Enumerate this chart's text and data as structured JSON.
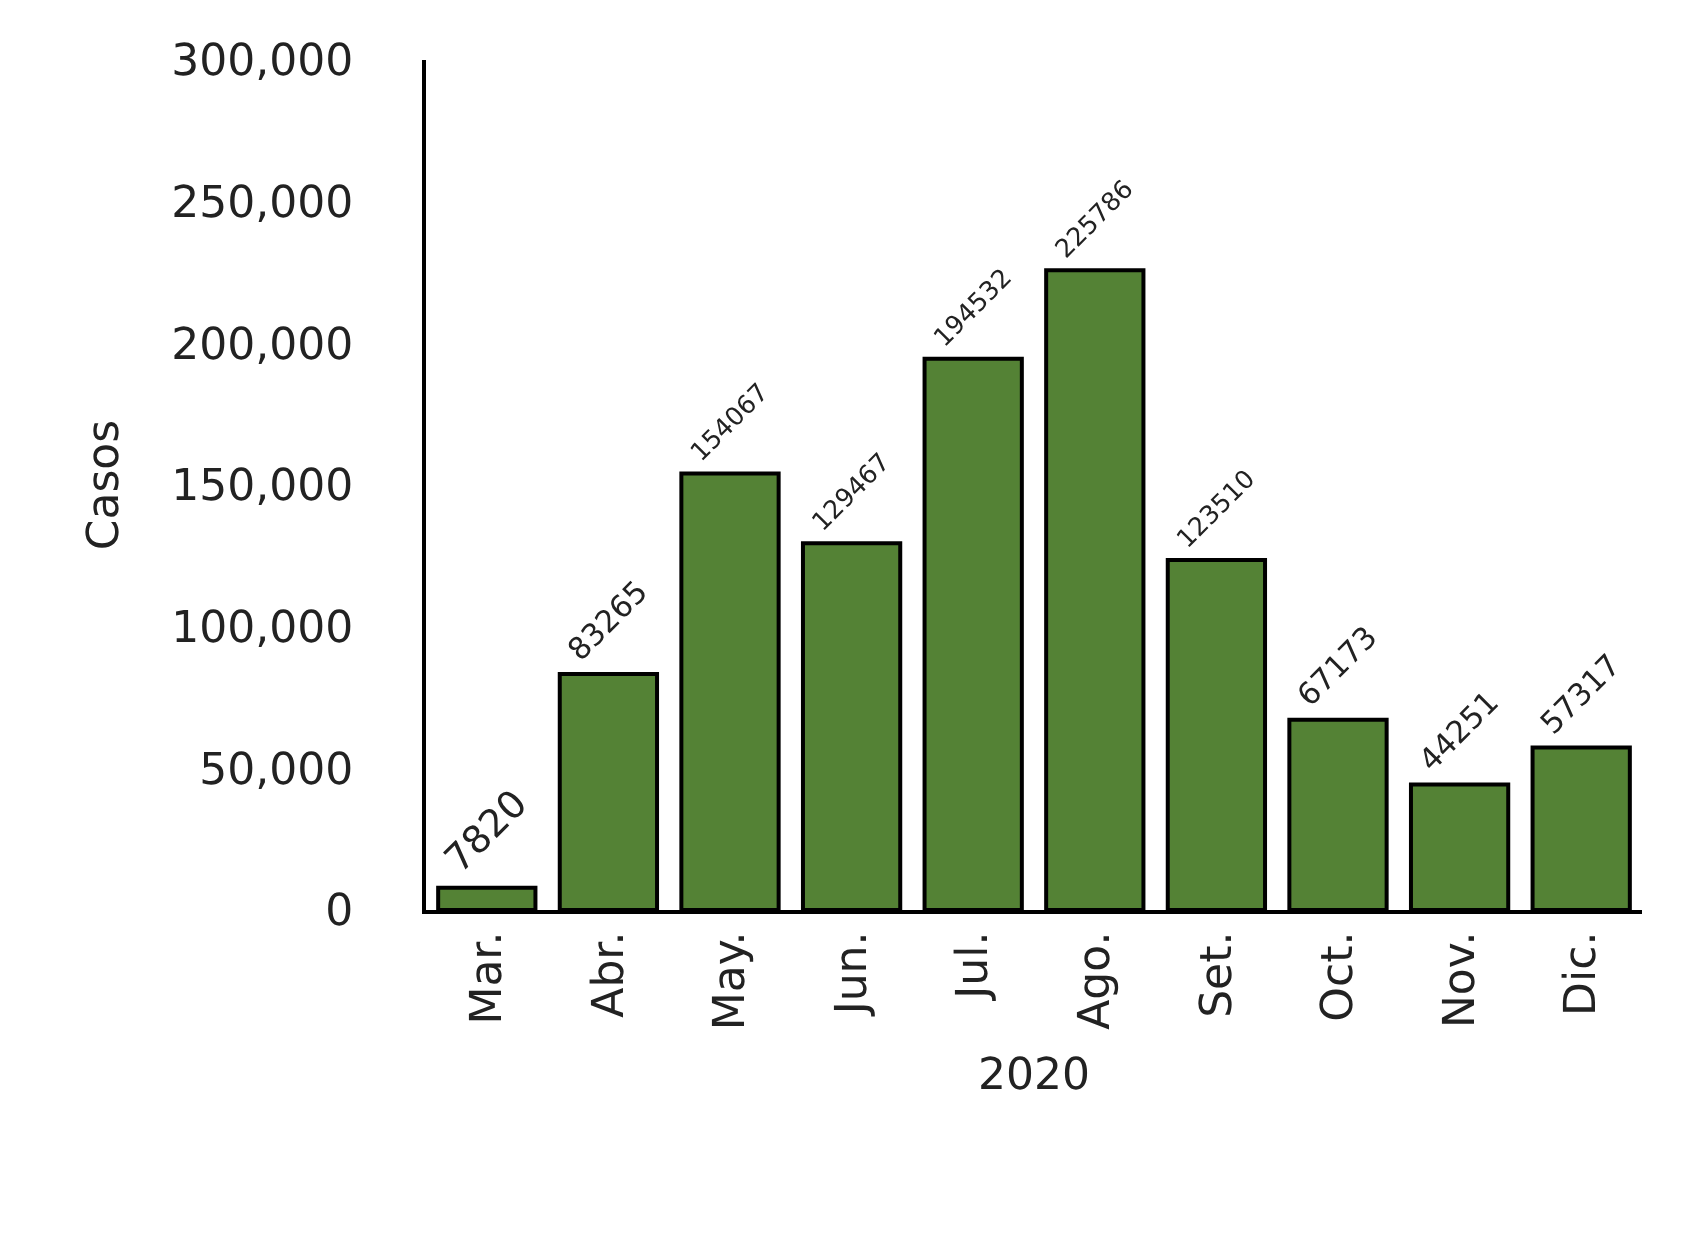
{
  "chart_data": {
    "type": "bar",
    "xlabel": "2020",
    "ylabel": "Casos",
    "categories": [
      "Mar.",
      "Abr.",
      "May.",
      "Jun.",
      "Jul.",
      "Ago.",
      "Set.",
      "Oct.",
      "Nov.",
      "Dic."
    ],
    "values": [
      7820,
      83265,
      154067,
      129467,
      194532,
      225786,
      123510,
      67173,
      44251,
      57317
    ],
    "color": "#548235",
    "ylim": [
      0,
      300000
    ],
    "yticks": [
      {
        "value": 0,
        "label": "0"
      },
      {
        "value": 50000,
        "label": "50,000"
      },
      {
        "value": 100000,
        "label": "100,000"
      },
      {
        "value": 150000,
        "label": "150,000"
      },
      {
        "value": 200000,
        "label": "200,000"
      },
      {
        "value": 250000,
        "label": "250,000"
      },
      {
        "value": 300000,
        "label": "300,000"
      }
    ],
    "data_labels": true,
    "grid": false,
    "legend": false
  }
}
